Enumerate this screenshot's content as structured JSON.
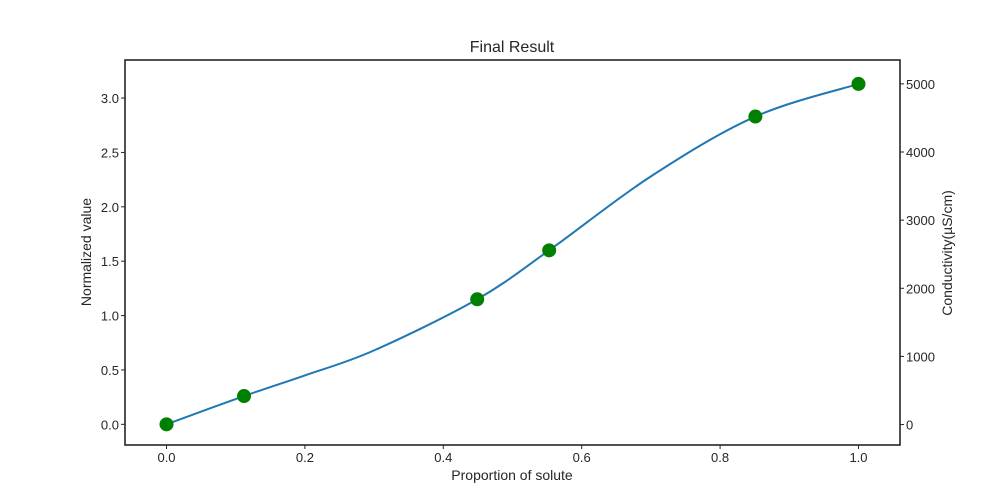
{
  "chart_data": {
    "type": "line",
    "title": "Final Result",
    "xlabel": "Proportion of solute",
    "ylabel": "Normalized value",
    "y2label": "Conductivity(µS/cm)",
    "xlim": [
      -0.06,
      1.06
    ],
    "ylim": [
      -0.19,
      3.35
    ],
    "y2lim": [
      -300,
      5350
    ],
    "x_ticks": [
      0.0,
      0.2,
      0.4,
      0.6,
      0.8,
      1.0
    ],
    "x_tick_labels": [
      "0.0",
      "0.2",
      "0.4",
      "0.6",
      "0.8",
      "1.0"
    ],
    "y_ticks": [
      0.0,
      0.5,
      1.0,
      1.5,
      2.0,
      2.5,
      3.0
    ],
    "y_tick_labels": [
      "0.0",
      "0.5",
      "1.0",
      "1.5",
      "2.0",
      "2.5",
      "3.0"
    ],
    "y2_ticks": [
      0,
      1000,
      2000,
      3000,
      4000,
      5000
    ],
    "y2_tick_labels": [
      "0",
      "1000",
      "2000",
      "3000",
      "4000",
      "5000"
    ],
    "grid": false,
    "series": [
      {
        "kind": "points",
        "color": "#008000",
        "x": [
          0.0,
          0.112,
          0.449,
          0.553,
          0.851,
          1.0
        ],
        "y": [
          0.0,
          0.26,
          1.15,
          1.6,
          2.83,
          3.13
        ]
      },
      {
        "kind": "smooth-line",
        "color": "#1f77b4",
        "x": [
          0.0,
          0.112,
          0.2,
          0.3,
          0.449,
          0.553,
          0.7,
          0.851,
          1.0
        ],
        "y": [
          0.0,
          0.26,
          0.45,
          0.68,
          1.15,
          1.6,
          2.28,
          2.83,
          3.13
        ]
      }
    ]
  }
}
